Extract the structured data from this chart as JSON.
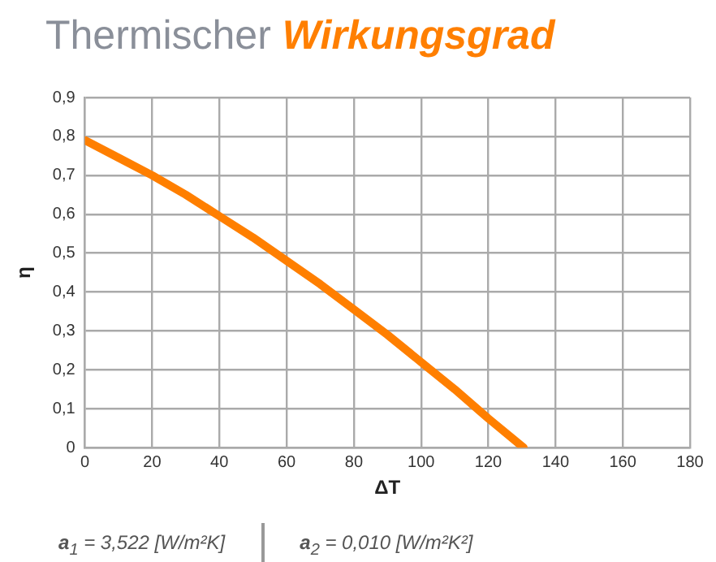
{
  "chart_data": {
    "type": "line",
    "title": "Thermischer Wirkungsgrad",
    "xlabel": "ΔT",
    "ylabel": "η",
    "x": [
      0,
      10,
      20,
      30,
      40,
      50,
      60,
      70,
      80,
      90,
      100,
      110,
      120,
      130.5
    ],
    "series": [
      {
        "color": "#ff7f00",
        "values": [
          0.79,
          0.745,
          0.7,
          0.65,
          0.595,
          0.54,
          0.48,
          0.42,
          0.355,
          0.29,
          0.22,
          0.15,
          0.075,
          0
        ]
      }
    ],
    "xlim": [
      0,
      180
    ],
    "xticks": [
      0,
      20,
      40,
      60,
      80,
      100,
      120,
      140,
      160,
      180
    ],
    "ylim": [
      0,
      0.9
    ],
    "yticks": [
      0,
      {
        "value": 0.1,
        "label": "0,1"
      },
      {
        "value": 0.2,
        "label": "0,2"
      },
      {
        "value": 0.3,
        "label": "0,3"
      },
      {
        "value": 0.4,
        "label": "0,4"
      },
      {
        "value": 0.5,
        "label": "0,5"
      },
      {
        "value": 0.6,
        "label": "0,6"
      },
      {
        "value": 0.7,
        "label": "0,7"
      },
      {
        "value": 0.8,
        "label": "0,8"
      },
      {
        "value": 0.9,
        "label": "0,9"
      }
    ],
    "grid": true,
    "legend": false,
    "marker": "none",
    "line_style": "solid",
    "annotations": [
      "a$_{1}$ = 3,522 [W/m²K]",
      "a$_{2}$ = 0,010 [W/m²K²]"
    ]
  }
}
